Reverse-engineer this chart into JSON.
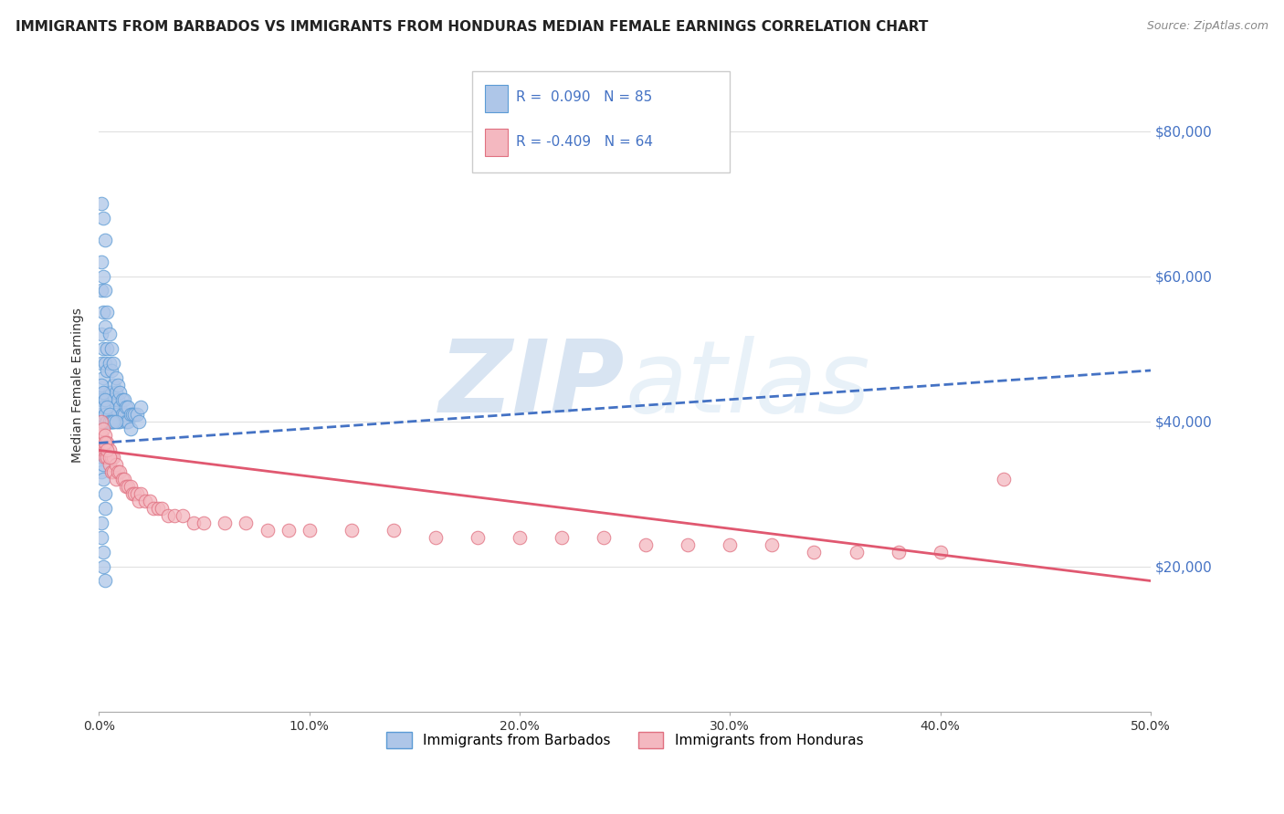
{
  "title": "IMMIGRANTS FROM BARBADOS VS IMMIGRANTS FROM HONDURAS MEDIAN FEMALE EARNINGS CORRELATION CHART",
  "source": "Source: ZipAtlas.com",
  "ylabel": "Median Female Earnings",
  "xlim": [
    0.0,
    0.5
  ],
  "ylim": [
    0,
    90000
  ],
  "yticks": [
    0,
    20000,
    40000,
    60000,
    80000
  ],
  "ytick_labels": [
    "",
    "$20,000",
    "$40,000",
    "$60,000",
    "$80,000"
  ],
  "xticks": [
    0.0,
    0.1,
    0.2,
    0.3,
    0.4,
    0.5
  ],
  "xtick_labels": [
    "0.0%",
    "10.0%",
    "20.0%",
    "30.0%",
    "40.0%",
    "50.0%"
  ],
  "barbados_R": 0.09,
  "barbados_N": 85,
  "honduras_R": -0.409,
  "honduras_N": 64,
  "barbados_color": "#aec6e8",
  "barbados_edge_color": "#5b9bd5",
  "barbados_line_color": "#4472c4",
  "honduras_color": "#f4b8c0",
  "honduras_edge_color": "#e07080",
  "honduras_line_color": "#e05870",
  "legend_text_color": "#4472c4",
  "background_color": "#ffffff",
  "grid_color": "#e0e0e0",
  "title_fontsize": 11,
  "barbados_x": [
    0.001,
    0.001,
    0.001,
    0.001,
    0.001,
    0.002,
    0.002,
    0.002,
    0.002,
    0.002,
    0.002,
    0.002,
    0.003,
    0.003,
    0.003,
    0.003,
    0.003,
    0.003,
    0.004,
    0.004,
    0.004,
    0.004,
    0.004,
    0.005,
    0.005,
    0.005,
    0.005,
    0.006,
    0.006,
    0.006,
    0.006,
    0.006,
    0.007,
    0.007,
    0.007,
    0.007,
    0.008,
    0.008,
    0.008,
    0.009,
    0.009,
    0.009,
    0.01,
    0.01,
    0.01,
    0.011,
    0.011,
    0.012,
    0.012,
    0.013,
    0.013,
    0.014,
    0.014,
    0.015,
    0.015,
    0.016,
    0.017,
    0.018,
    0.019,
    0.02,
    0.001,
    0.001,
    0.001,
    0.002,
    0.002,
    0.003,
    0.003,
    0.004,
    0.004,
    0.005,
    0.005,
    0.006,
    0.007,
    0.008,
    0.001,
    0.001,
    0.002,
    0.002,
    0.003,
    0.003,
    0.001,
    0.001,
    0.002,
    0.002,
    0.003
  ],
  "barbados_y": [
    70000,
    62000,
    58000,
    52000,
    48000,
    68000,
    60000,
    55000,
    50000,
    46000,
    43000,
    40000,
    65000,
    58000,
    53000,
    48000,
    44000,
    40000,
    55000,
    50000,
    47000,
    43000,
    40000,
    52000,
    48000,
    44000,
    40000,
    50000,
    47000,
    44000,
    42000,
    40000,
    48000,
    45000,
    43000,
    40000,
    46000,
    44000,
    41000,
    45000,
    43000,
    40000,
    44000,
    42000,
    40000,
    43000,
    41000,
    43000,
    41000,
    42000,
    40000,
    42000,
    40000,
    41000,
    39000,
    41000,
    41000,
    41000,
    40000,
    42000,
    45000,
    43000,
    41000,
    44000,
    42000,
    43000,
    41000,
    42000,
    40000,
    41000,
    40000,
    40000,
    40000,
    40000,
    35000,
    33000,
    34000,
    32000,
    30000,
    28000,
    26000,
    24000,
    22000,
    20000,
    18000
  ],
  "honduras_x": [
    0.001,
    0.001,
    0.002,
    0.002,
    0.002,
    0.003,
    0.003,
    0.003,
    0.004,
    0.004,
    0.005,
    0.005,
    0.006,
    0.006,
    0.007,
    0.007,
    0.008,
    0.008,
    0.009,
    0.01,
    0.011,
    0.012,
    0.013,
    0.014,
    0.015,
    0.016,
    0.017,
    0.018,
    0.019,
    0.02,
    0.022,
    0.024,
    0.026,
    0.028,
    0.03,
    0.033,
    0.036,
    0.04,
    0.045,
    0.05,
    0.06,
    0.07,
    0.08,
    0.09,
    0.1,
    0.12,
    0.14,
    0.16,
    0.18,
    0.2,
    0.22,
    0.24,
    0.26,
    0.28,
    0.3,
    0.32,
    0.34,
    0.36,
    0.38,
    0.4,
    0.003,
    0.004,
    0.43,
    0.005
  ],
  "honduras_y": [
    40000,
    38000,
    39000,
    37000,
    36000,
    38000,
    36000,
    35000,
    37000,
    35000,
    36000,
    34000,
    35000,
    33000,
    35000,
    33000,
    34000,
    32000,
    33000,
    33000,
    32000,
    32000,
    31000,
    31000,
    31000,
    30000,
    30000,
    30000,
    29000,
    30000,
    29000,
    29000,
    28000,
    28000,
    28000,
    27000,
    27000,
    27000,
    26000,
    26000,
    26000,
    26000,
    25000,
    25000,
    25000,
    25000,
    25000,
    24000,
    24000,
    24000,
    24000,
    24000,
    23000,
    23000,
    23000,
    23000,
    22000,
    22000,
    22000,
    22000,
    37000,
    36000,
    32000,
    35000
  ],
  "barbados_trendline_x": [
    0.0,
    0.5
  ],
  "barbados_trendline_y": [
    37000,
    47000
  ],
  "honduras_trendline_x": [
    0.0,
    0.5
  ],
  "honduras_trendline_y": [
    36000,
    18000
  ]
}
